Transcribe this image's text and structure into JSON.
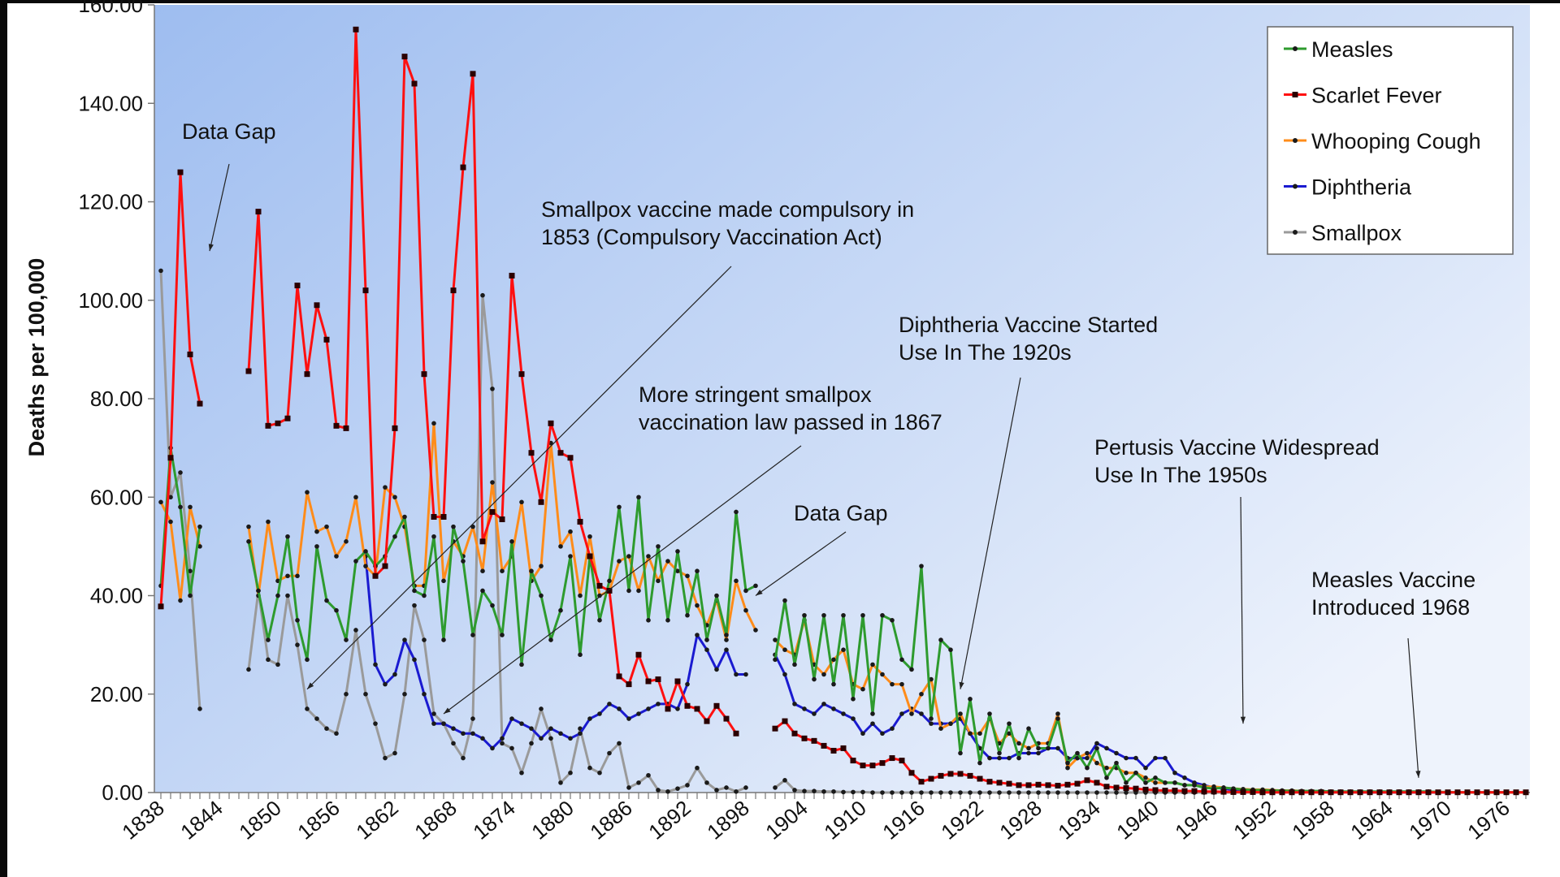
{
  "chart_data": {
    "type": "line",
    "title": "",
    "xlabel": "",
    "ylabel": "Deaths per 100,000",
    "ylim": [
      0,
      160
    ],
    "xlim": [
      1837.5,
      1979
    ],
    "yticks": [
      "0.00",
      "20.00",
      "40.00",
      "60.00",
      "80.00",
      "100.00",
      "120.00",
      "140.00",
      "160.00"
    ],
    "xticks": [
      "1838",
      "1844",
      "1850",
      "1856",
      "1862",
      "1868",
      "1874",
      "1880",
      "1886",
      "1892",
      "1898",
      "1904",
      "1910",
      "1916",
      "1922",
      "1928",
      "1934",
      "1940",
      "1946",
      "1952",
      "1958",
      "1964",
      "1970",
      "1976"
    ],
    "grid": false,
    "legend_position": "top-right",
    "series": [
      {
        "name": "Measles",
        "color": "#2e9b2e",
        "segments": [
          {
            "start": 1838,
            "values": [
              42,
              70,
              58,
              40,
              54
            ]
          },
          {
            "start": 1847,
            "values": [
              51,
              41,
              31,
              40,
              52,
              35,
              27,
              50,
              39,
              37,
              31,
              47,
              49,
              46,
              48,
              52,
              56,
              41,
              40,
              52,
              31,
              54,
              47,
              32,
              41,
              38,
              32,
              51,
              26,
              45,
              40,
              31,
              37,
              48,
              28,
              48,
              35,
              43,
              58,
              41,
              60,
              35,
              50,
              35,
              49,
              36,
              45,
              31,
              40,
              32,
              57,
              41,
              42
            ]
          },
          {
            "start": 1901,
            "values": [
              27,
              39,
              26,
              36,
              23,
              36,
              22,
              36,
              19,
              36,
              16,
              36,
              35,
              27,
              25,
              46,
              15,
              31,
              29,
              8,
              19,
              6,
              16,
              8,
              14,
              7,
              13,
              9,
              9,
              15,
              6,
              8,
              5,
              9,
              3,
              6,
              2,
              4,
              2,
              3,
              2,
              2,
              1.5,
              1.5,
              1,
              0.8,
              1,
              0.8,
              0.6,
              0.5,
              0.5,
              0.4,
              0.4,
              0.3,
              0.3,
              0.3,
              0.3,
              0.2,
              0.2,
              0.2,
              0.2,
              0.2,
              0.2,
              0.2,
              0.2,
              0.2,
              0.2,
              0.2,
              0.1,
              0.1,
              0.05,
              0.05,
              0.05,
              0.05,
              0.05,
              0.05,
              0.05,
              0.05
            ]
          }
        ]
      },
      {
        "name": "Scarlet Fever",
        "color": "#ff1010",
        "segments": [
          {
            "start": 1838,
            "values": [
              37.8,
              68,
              126,
              89,
              79
            ]
          },
          {
            "start": 1847,
            "values": [
              85.6,
              118,
              74.5,
              75,
              76,
              103,
              85,
              99,
              92,
              74.5,
              74,
              155,
              102,
              44,
              46,
              74,
              149.5,
              144,
              85,
              56,
              56,
              102,
              127,
              146,
              51,
              57,
              55.5,
              105,
              85,
              69,
              59,
              75,
              69,
              68,
              55,
              48,
              42,
              41,
              23.6,
              22,
              28,
              22.6,
              23,
              17,
              22.6,
              17.6,
              17,
              14.5,
              17.6,
              15,
              12
            ]
          },
          {
            "start": 1901,
            "values": [
              13,
              14.5,
              12,
              11,
              10.5,
              9.5,
              8.5,
              9,
              6.5,
              5.5,
              5.5,
              6,
              7,
              6.5,
              4,
              2.2,
              2.8,
              3.4,
              3.8,
              3.8,
              3.4,
              2.8,
              2.2,
              2,
              1.8,
              1.5,
              1.5,
              1.6,
              1.5,
              1.4,
              1.6,
              1.8,
              2.5,
              2,
              1.2,
              1,
              0.9,
              0.8,
              0.6,
              0.5,
              0.4,
              0.4,
              0.3,
              0.3,
              0.2,
              0.2,
              0.15,
              0.1,
              0.1,
              0.1,
              0.05,
              0.05,
              0.05,
              0.05,
              0.05,
              0.05,
              0.05,
              0.05,
              0.05,
              0.05,
              0.05,
              0.05,
              0.05,
              0.05,
              0.05,
              0.05,
              0.05,
              0.05,
              0.05,
              0.05,
              0.05,
              0.05,
              0.05,
              0.05,
              0.05,
              0.05,
              0.05,
              0.05
            ]
          }
        ]
      },
      {
        "name": "Whooping Cough",
        "color": "#ff8c1a",
        "segments": [
          {
            "start": 1838,
            "values": [
              59,
              55,
              39,
              58,
              50
            ]
          },
          {
            "start": 1847,
            "values": [
              54,
              40,
              55,
              43,
              44,
              44,
              61,
              53,
              54,
              48,
              51,
              60,
              46,
              44,
              62,
              60,
              54,
              42,
              42,
              75,
              43,
              51,
              48,
              54,
              45,
              63,
              45,
              48,
              59,
              43,
              46,
              71,
              50,
              53,
              40,
              52,
              40,
              41,
              47,
              48,
              41,
              48,
              43,
              47,
              45,
              44,
              38,
              34,
              39,
              31,
              43,
              37,
              33
            ]
          },
          {
            "start": 1901,
            "values": [
              31,
              29,
              28,
              35,
              26,
              24,
              27,
              29,
              22,
              21,
              26,
              24,
              22,
              22,
              16,
              20,
              23,
              13,
              14,
              16,
              12,
              12,
              15,
              10,
              12,
              10,
              9,
              10,
              10,
              16,
              5,
              7,
              8,
              6,
              5,
              5,
              4,
              4,
              3,
              2,
              2,
              2,
              1.5,
              1.5,
              1.2,
              1.2,
              1,
              0.8,
              0.7,
              0.6,
              0.6,
              0.5,
              0.4,
              0.4,
              0.3,
              0.2,
              0.2,
              0.1,
              0.1,
              0.1,
              0.1,
              0.1,
              0.1,
              0.1,
              0.1,
              0.1,
              0.1,
              0.1,
              0.1,
              0.1,
              0.05,
              0.05,
              0.05,
              0.05,
              0.05,
              0.05,
              0.05,
              0.05
            ]
          }
        ]
      },
      {
        "name": "Diphtheria",
        "color": "#1a1ad0",
        "segments": [
          {
            "start": 1859,
            "values": [
              48,
              26,
              22,
              24,
              31,
              27,
              20,
              14,
              14,
              13,
              12,
              12,
              11,
              9,
              11,
              15,
              14,
              13,
              11,
              13,
              12,
              11,
              12,
              15,
              16,
              18,
              17,
              15,
              16,
              17,
              18,
              18,
              17,
              22,
              32,
              29,
              25,
              29,
              24,
              24
            ]
          },
          {
            "start": 1901,
            "values": [
              28,
              24,
              18,
              17,
              16,
              18,
              17,
              16,
              15,
              12,
              14,
              12,
              13,
              16,
              17,
              16,
              14,
              14,
              14,
              15,
              12,
              9,
              7,
              7,
              7,
              8,
              8,
              8,
              9,
              9,
              7,
              7,
              7,
              10,
              9,
              8,
              7,
              7,
              5,
              7,
              7,
              4,
              3,
              2,
              1.5,
              1,
              0.8,
              0.5,
              0.3,
              0.2,
              0.1,
              0.1,
              0.1,
              0.1,
              0.1,
              0.1,
              0.1,
              0.1,
              0.1,
              0.1,
              0.05,
              0.05,
              0.05,
              0.05,
              0.05,
              0.05,
              0.05,
              0.05,
              0.05,
              0.05,
              0.05,
              0.05,
              0.05,
              0.05,
              0.05,
              0.05,
              0.05,
              0.05
            ]
          }
        ]
      },
      {
        "name": "Smallpox",
        "color": "#9a9a9a",
        "segments": [
          {
            "start": 1838,
            "values": [
              106,
              60,
              65,
              45,
              17
            ]
          },
          {
            "start": 1847,
            "values": [
              25,
              41,
              27,
              26,
              40,
              30,
              17,
              15,
              13,
              12,
              20,
              33,
              20,
              14,
              7,
              8,
              20,
              38,
              31,
              16,
              14,
              10,
              7,
              15,
              101,
              82,
              10,
              9,
              4,
              10,
              17,
              11,
              2,
              4,
              13,
              5,
              4,
              8,
              10,
              1,
              2,
              3.5,
              0.5,
              0.2,
              0.8,
              1.5,
              5,
              2,
              0.5,
              1,
              0.2,
              1
            ]
          },
          {
            "start": 1901,
            "values": [
              1,
              2.5,
              0.5,
              0.3,
              0.3,
              0.2,
              0.2,
              0.1,
              0.1,
              0.1,
              0,
              0,
              0,
              0,
              0,
              0,
              0,
              0,
              0,
              0,
              0,
              0,
              0,
              0,
              0,
              0,
              0,
              0,
              0,
              0,
              0,
              0,
              0,
              0,
              0,
              0,
              0,
              0,
              0,
              0,
              0,
              0,
              0,
              0,
              0,
              0,
              0,
              0,
              0,
              0,
              0,
              0,
              0,
              0,
              0,
              0,
              0,
              0,
              0,
              0,
              0,
              0,
              0,
              0,
              0,
              0,
              0,
              0,
              0,
              0,
              0,
              0,
              0,
              0,
              0,
              0,
              0,
              0
            ]
          }
        ]
      }
    ],
    "annotations": [
      {
        "lines": [
          "Data Gap"
        ],
        "year": 1843,
        "value": 110
      },
      {
        "lines": [
          "Smallpox vaccine made compulsory in",
          "1853 (Compulsory Vaccination Act)"
        ],
        "year": 1853,
        "value": 21
      },
      {
        "lines": [
          "More stringent smallpox",
          "vaccination law passed in 1867"
        ],
        "year": 1867,
        "value": 16
      },
      {
        "lines": [
          "Data Gap"
        ],
        "year": 1899,
        "value": 40
      },
      {
        "lines": [
          "Diphtheria Vaccine Started",
          "Use In The 1920s"
        ],
        "year": 1920,
        "value": 21
      },
      {
        "lines": [
          "Pertusis Vaccine Widespread",
          "Use In The 1950s"
        ],
        "year": 1949,
        "value": 14
      },
      {
        "lines": [
          "Measles Vaccine",
          "Introduced 1968"
        ],
        "year": 1967,
        "value": 3
      }
    ]
  }
}
